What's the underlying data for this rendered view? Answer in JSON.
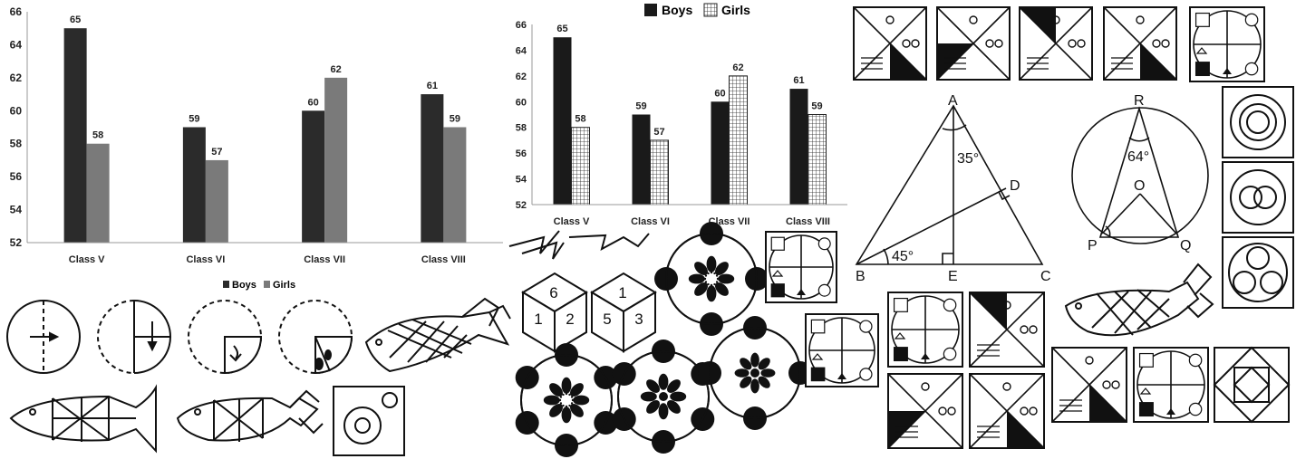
{
  "chart_data": [
    {
      "type": "bar",
      "categories": [
        "Class V",
        "Class VI",
        "Class VII",
        "Class VIII"
      ],
      "series": [
        {
          "name": "Boys",
          "values": [
            65,
            59,
            60,
            61
          ]
        },
        {
          "name": "Girls",
          "values": [
            58,
            57,
            62,
            59
          ]
        }
      ],
      "y_ticks": [
        52,
        54,
        56,
        58,
        60,
        62,
        64,
        66
      ],
      "ylim": [
        52,
        66
      ],
      "legend": "bottom",
      "style": "solid",
      "colors": {
        "Boys": "#2b2b2b",
        "Girls": "#7a7a7a"
      }
    },
    {
      "type": "bar",
      "categories": [
        "Class V",
        "Class VI",
        "Class VII",
        "Class VIII"
      ],
      "series": [
        {
          "name": "Boys",
          "values": [
            65,
            59,
            60,
            61
          ]
        },
        {
          "name": "Girls",
          "values": [
            58,
            57,
            62,
            59
          ]
        }
      ],
      "y_ticks": [
        52,
        54,
        56,
        58,
        60,
        62,
        64,
        66
      ],
      "ylim": [
        52,
        66
      ],
      "legend": "top",
      "style": "pattern",
      "colors": {
        "Boys": "#1a1a1a",
        "Girls": "grid-hatch"
      }
    }
  ],
  "figures": {
    "triangle": {
      "vertices": [
        "A",
        "B",
        "C",
        "D",
        "E"
      ],
      "angles": [
        "35°",
        "45°"
      ]
    },
    "circle": {
      "points": [
        "R",
        "O",
        "P",
        "Q"
      ],
      "angle": "64°"
    },
    "cube_left": {
      "faces": [
        "6",
        "1",
        "2"
      ]
    },
    "cube_right": {
      "faces": [
        "1",
        "5",
        "3"
      ]
    }
  }
}
